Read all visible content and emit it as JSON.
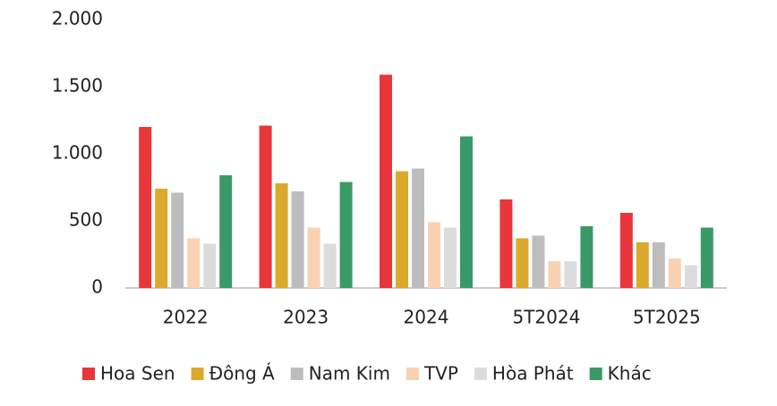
{
  "chart_data": {
    "type": "bar",
    "categories": [
      "2022",
      "2023",
      "2024",
      "5T2024",
      "5T2025"
    ],
    "series": [
      {
        "name": "Hoa Sen",
        "color": "#e8363a",
        "values": [
          1200,
          1210,
          1590,
          660,
          560
        ]
      },
      {
        "name": "Đông Á",
        "color": "#dba92b",
        "values": [
          740,
          780,
          870,
          370,
          340
        ]
      },
      {
        "name": "Nam Kim",
        "color": "#bdbdbd",
        "values": [
          710,
          720,
          890,
          390,
          340
        ]
      },
      {
        "name": "TVP",
        "color": "#f9d2b4",
        "values": [
          370,
          450,
          490,
          200,
          220
        ]
      },
      {
        "name": "Hòa Phát",
        "color": "#dcdcdc",
        "values": [
          330,
          330,
          450,
          200,
          170
        ]
      },
      {
        "name": "Khác",
        "color": "#3a9a67",
        "values": [
          840,
          790,
          1130,
          460,
          450
        ]
      }
    ],
    "ylim": [
      0,
      2000
    ],
    "yticks": [
      0,
      500,
      {
        "value": 1000,
        "label": "1.000"
      },
      {
        "value": 1500,
        "label": "1.500"
      },
      {
        "value": 2000,
        "label": "2.000"
      }
    ],
    "grid": false
  }
}
